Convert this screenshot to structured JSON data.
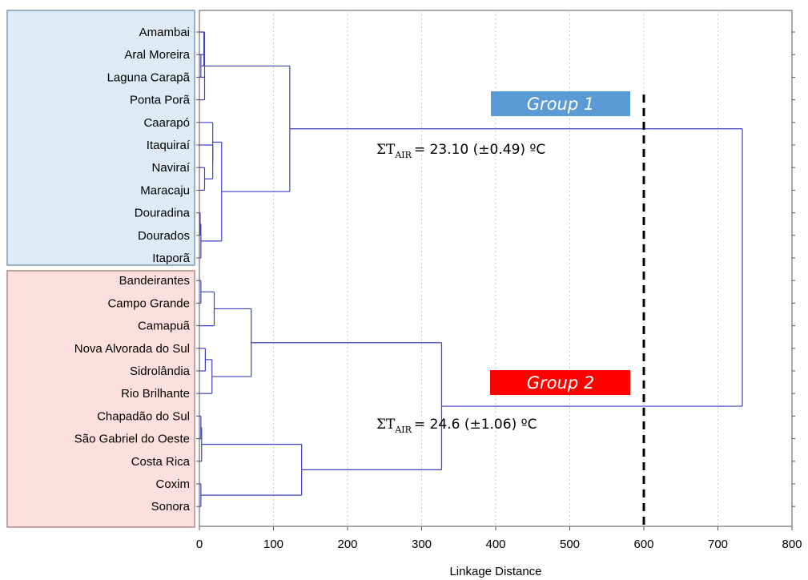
{
  "chart_data": {
    "type": "dendrogram",
    "xlabel": "Linkage Distance",
    "xlim": [
      0,
      800
    ],
    "x_ticks": [
      "0",
      "100",
      "200",
      "300",
      "400",
      "500",
      "600",
      "700",
      "800"
    ],
    "grid": true,
    "cutoff_line": 600,
    "leaves": [
      "Amambai",
      "Aral Moreira",
      "Laguna Carapã",
      "Ponta Porã",
      "Caarapó",
      "Itaquiraí",
      "Naviraí",
      "Maracaju",
      "Douradina",
      "Dourados",
      "Itaporã",
      "Bandeirantes",
      "Campo Grande",
      "Camapuã",
      "Nova Alvorada do Sul",
      "Sidrolândia",
      "Rio Brilhante",
      "Chapadão do Sul",
      "São Gabriel do Oeste",
      "Costa Rica",
      "Coxim",
      "Sonora"
    ],
    "merges": [
      {
        "children": [
          "Aral Moreira",
          "Laguna Carapã"
        ],
        "height": 2
      },
      {
        "children": [
          "Amambai",
          "#0"
        ],
        "height": 6
      },
      {
        "children": [
          "Amambai",
          "Aral Moreira",
          "Laguna Carapã",
          "Ponta Porã"
        ],
        "height": 7
      },
      {
        "children": [
          "Naviraí",
          "Maracaju"
        ],
        "height": 7
      },
      {
        "children": [
          "Itaquiraí",
          "#3"
        ],
        "height": 18
      },
      {
        "children": [
          "Caarapó",
          "#4"
        ],
        "height": 18
      },
      {
        "children": [
          "Douradina",
          "Dourados"
        ],
        "height": 1
      },
      {
        "children": [
          "#6",
          "Itaporã"
        ],
        "height": 2
      },
      {
        "children": [
          "#5",
          "#7"
        ],
        "height": 30
      },
      {
        "children": [
          "#2",
          "#8"
        ],
        "height": 122
      },
      {
        "children": [
          "Bandeirantes",
          "Campo Grande"
        ],
        "height": 2
      },
      {
        "children": [
          "#10",
          "Camapuã"
        ],
        "height": 20
      },
      {
        "children": [
          "Nova Alvorada do Sul",
          "Sidrolândia"
        ],
        "height": 8
      },
      {
        "children": [
          "#12",
          "Rio Brilhante"
        ],
        "height": 17
      },
      {
        "children": [
          "#11",
          "#13"
        ],
        "height": 70
      },
      {
        "children": [
          "Chapadão do Sul",
          "São Gabriel do Oeste"
        ],
        "height": 2
      },
      {
        "children": [
          "Costa Rica",
          "#15"
        ],
        "height": 3
      },
      {
        "children": [
          "Coxim",
          "Sonora"
        ],
        "height": 2
      },
      {
        "children": [
          "#16",
          "#17"
        ],
        "height": 138
      },
      {
        "children": [
          "#14",
          "#18"
        ],
        "height": 327
      },
      {
        "children": [
          "#9",
          "#19"
        ],
        "height": 733
      }
    ],
    "groups": [
      {
        "label": "Group 1",
        "color": "#5b9bd5",
        "note_prefix": "ΣT",
        "note_sub": "AIR",
        "note_value": "= 23.10 (±0.49) ºC"
      },
      {
        "label": "Group 2",
        "color": "#ff0000",
        "note_prefix": "ΣT",
        "note_sub": "AIR",
        "note_value": "= 24.6 (±1.06) ºC"
      }
    ],
    "colors": {
      "branch": "#4040c0",
      "group1_box": "#deeaf6",
      "group1_box_border": "#7a9ab0",
      "group2_box": "#fde0de",
      "group2_box_border": "#b08a88"
    }
  }
}
